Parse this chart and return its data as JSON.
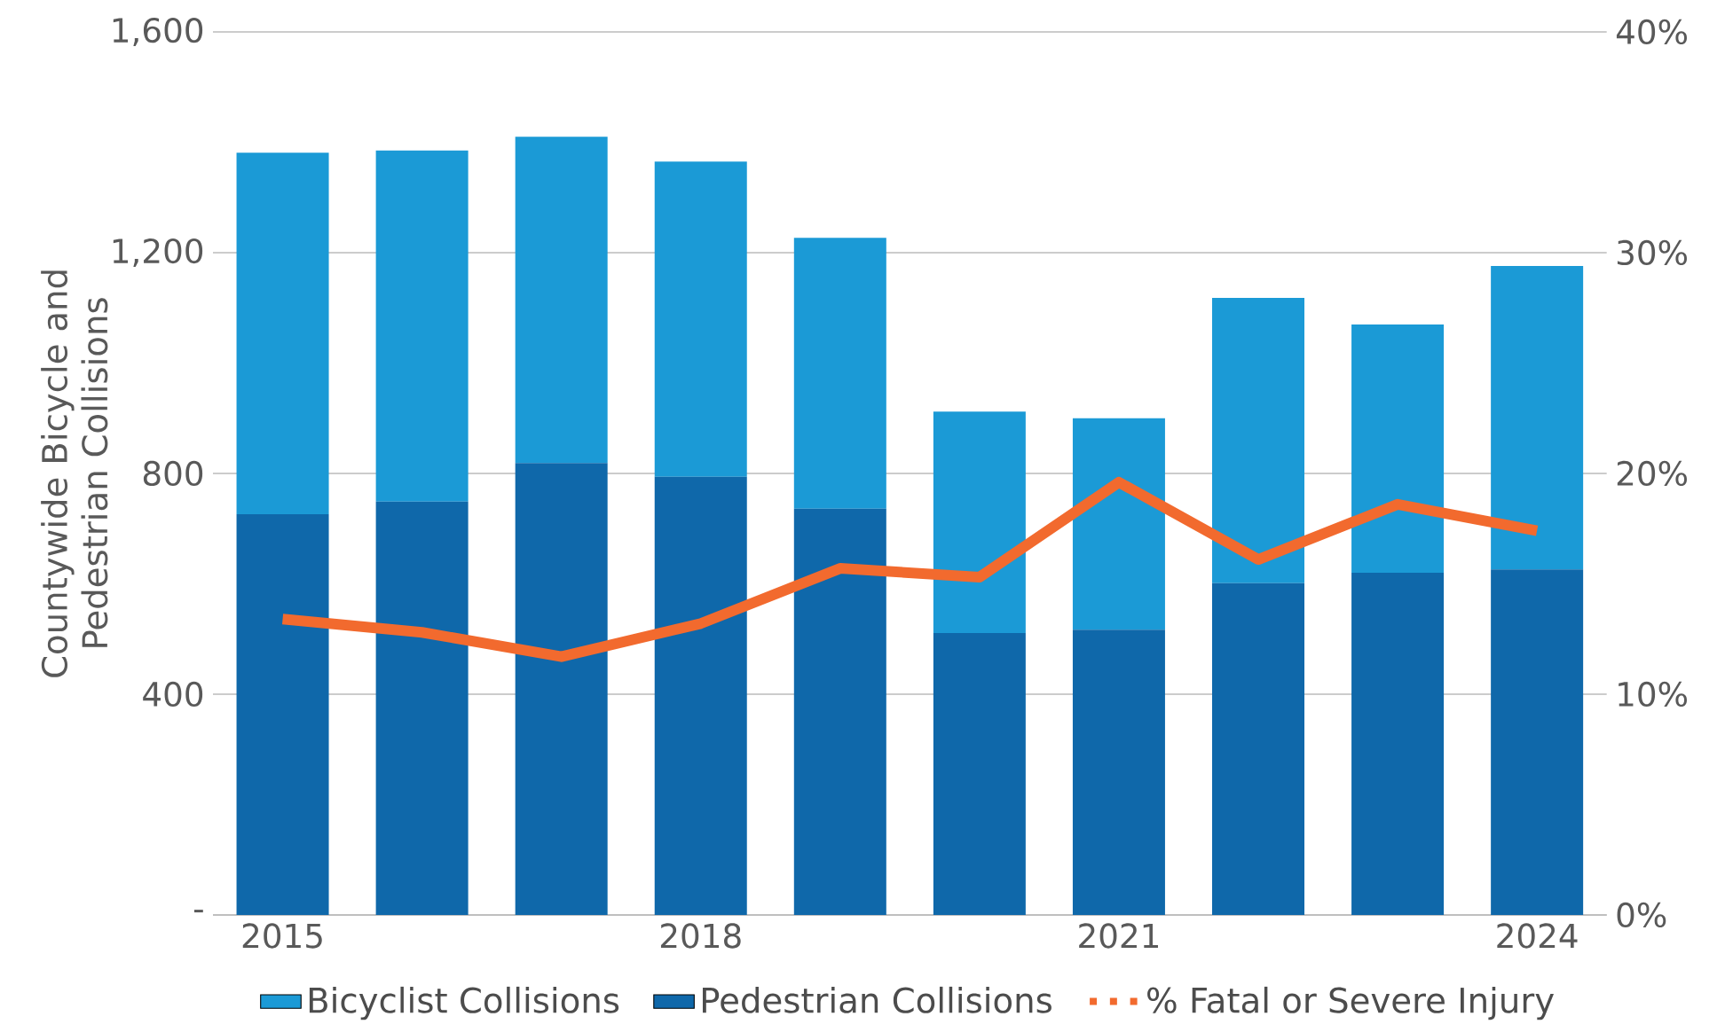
{
  "chart_data": {
    "type": "bar",
    "stacked": true,
    "ylabel": "Countywide Bicycle and Pedestrian Collisions",
    "categories": [
      "2015",
      null,
      null,
      "2018",
      null,
      null,
      "2021",
      null,
      null,
      "2024"
    ],
    "series": [
      {
        "name": "Pedestrian Collisions",
        "color": "#0f68aa",
        "values": [
          726,
          749,
          819,
          794,
          736,
          511,
          517,
          601,
          620,
          626
        ]
      },
      {
        "name": "Bicyclist Collisions",
        "color": "#1b9ad6",
        "values": [
          655,
          636,
          591,
          571,
          491,
          401,
          383,
          517,
          450,
          550
        ]
      },
      {
        "name": "% Fatal or Severe Injury",
        "color": "#f26a2e",
        "type": "line",
        "axis": "y2",
        "values": [
          13.4,
          12.8,
          11.7,
          13.2,
          15.7,
          15.3,
          19.6,
          16.1,
          18.6,
          17.4
        ]
      }
    ],
    "ylim": [
      0,
      1600
    ],
    "yticks": [
      {
        "value": 0,
        "label": "-"
      },
      400,
      800,
      {
        "value": 1200,
        "label": "1,200"
      },
      {
        "value": 1600,
        "label": "1,600"
      }
    ],
    "y2lim": [
      0,
      40
    ],
    "y2ticks": [
      {
        "value": 0,
        "label": "0%"
      },
      {
        "value": 10,
        "label": "10%"
      },
      {
        "value": 20,
        "label": "20%"
      },
      {
        "value": 30,
        "label": "30%"
      },
      {
        "value": 40,
        "label": "40%"
      }
    ],
    "grid": "y",
    "legend": "bottom",
    "marker": "none",
    "line_style": "solid"
  }
}
